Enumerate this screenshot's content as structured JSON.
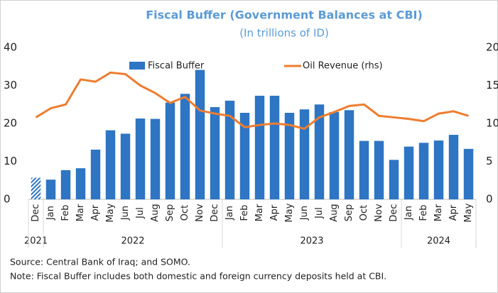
{
  "chart_data": {
    "type": "bar_line",
    "title": "Fiscal Buffer (Government Balances at CBI)",
    "subtitle": "(In trillions of ID)",
    "categories": [
      "Dec",
      "Jan",
      "Feb",
      "Mar",
      "Apr",
      "May",
      "Jun",
      "Jul",
      "Aug",
      "Sep",
      "Oct",
      "Nov",
      "Dec",
      "Jan",
      "Feb",
      "Mar",
      "Apr",
      "May",
      "Jun",
      "Jul",
      "Aug",
      "Sep",
      "Oct",
      "Nov",
      "Dec",
      "Jan",
      "Feb",
      "Mar",
      "Apr",
      "May"
    ],
    "category_years": [
      "2021",
      "2022",
      "2022",
      "2022",
      "2022",
      "2022",
      "2022",
      "2022",
      "2022",
      "2022",
      "2022",
      "2022",
      "2022",
      "2023",
      "2023",
      "2023",
      "2023",
      "2023",
      "2023",
      "2023",
      "2023",
      "2023",
      "2023",
      "2023",
      "2023",
      "2024",
      "2024",
      "2024",
      "2024",
      "2024"
    ],
    "series": [
      {
        "name": "Fiscal Buffer",
        "type": "bar",
        "color": "#2e75c3",
        "axis": "y",
        "hatched": [
          0
        ],
        "values": [
          5.7,
          5.2,
          7.7,
          8.2,
          13.1,
          18.2,
          17.3,
          21.3,
          21.2,
          25.5,
          27.8,
          34.1,
          24.3,
          26.0,
          22.8,
          27.3,
          27.3,
          22.8,
          23.7,
          25.0,
          23.0,
          23.5,
          15.4,
          15.4,
          10.4,
          13.9,
          14.9,
          15.5,
          17.0,
          13.3
        ]
      },
      {
        "name": "Oil Revenue (rhs)",
        "type": "line",
        "color": "#ed7d31",
        "axis": "y2",
        "values": [
          10.8,
          12.0,
          12.5,
          15.8,
          15.5,
          16.7,
          16.5,
          15.0,
          14.0,
          12.7,
          13.5,
          11.7,
          11.3,
          11.0,
          9.5,
          9.8,
          10.0,
          9.8,
          9.3,
          10.8,
          11.5,
          12.3,
          12.5,
          11.0,
          10.8,
          10.6,
          10.3,
          11.3,
          11.6,
          11.0
        ]
      }
    ],
    "ylim": [
      0,
      40
    ],
    "yticks": [
      0,
      10,
      20,
      30,
      40
    ],
    "y2lim": [
      0,
      20
    ],
    "y2ticks": [
      0,
      5,
      10,
      15,
      20
    ],
    "grid": false,
    "legend": "top",
    "source": "Source: Central Bank of Iraq; and SOMO.",
    "note": "Note: Fiscal Buffer includes both domestic and foreign currency deposits held at CBI."
  }
}
